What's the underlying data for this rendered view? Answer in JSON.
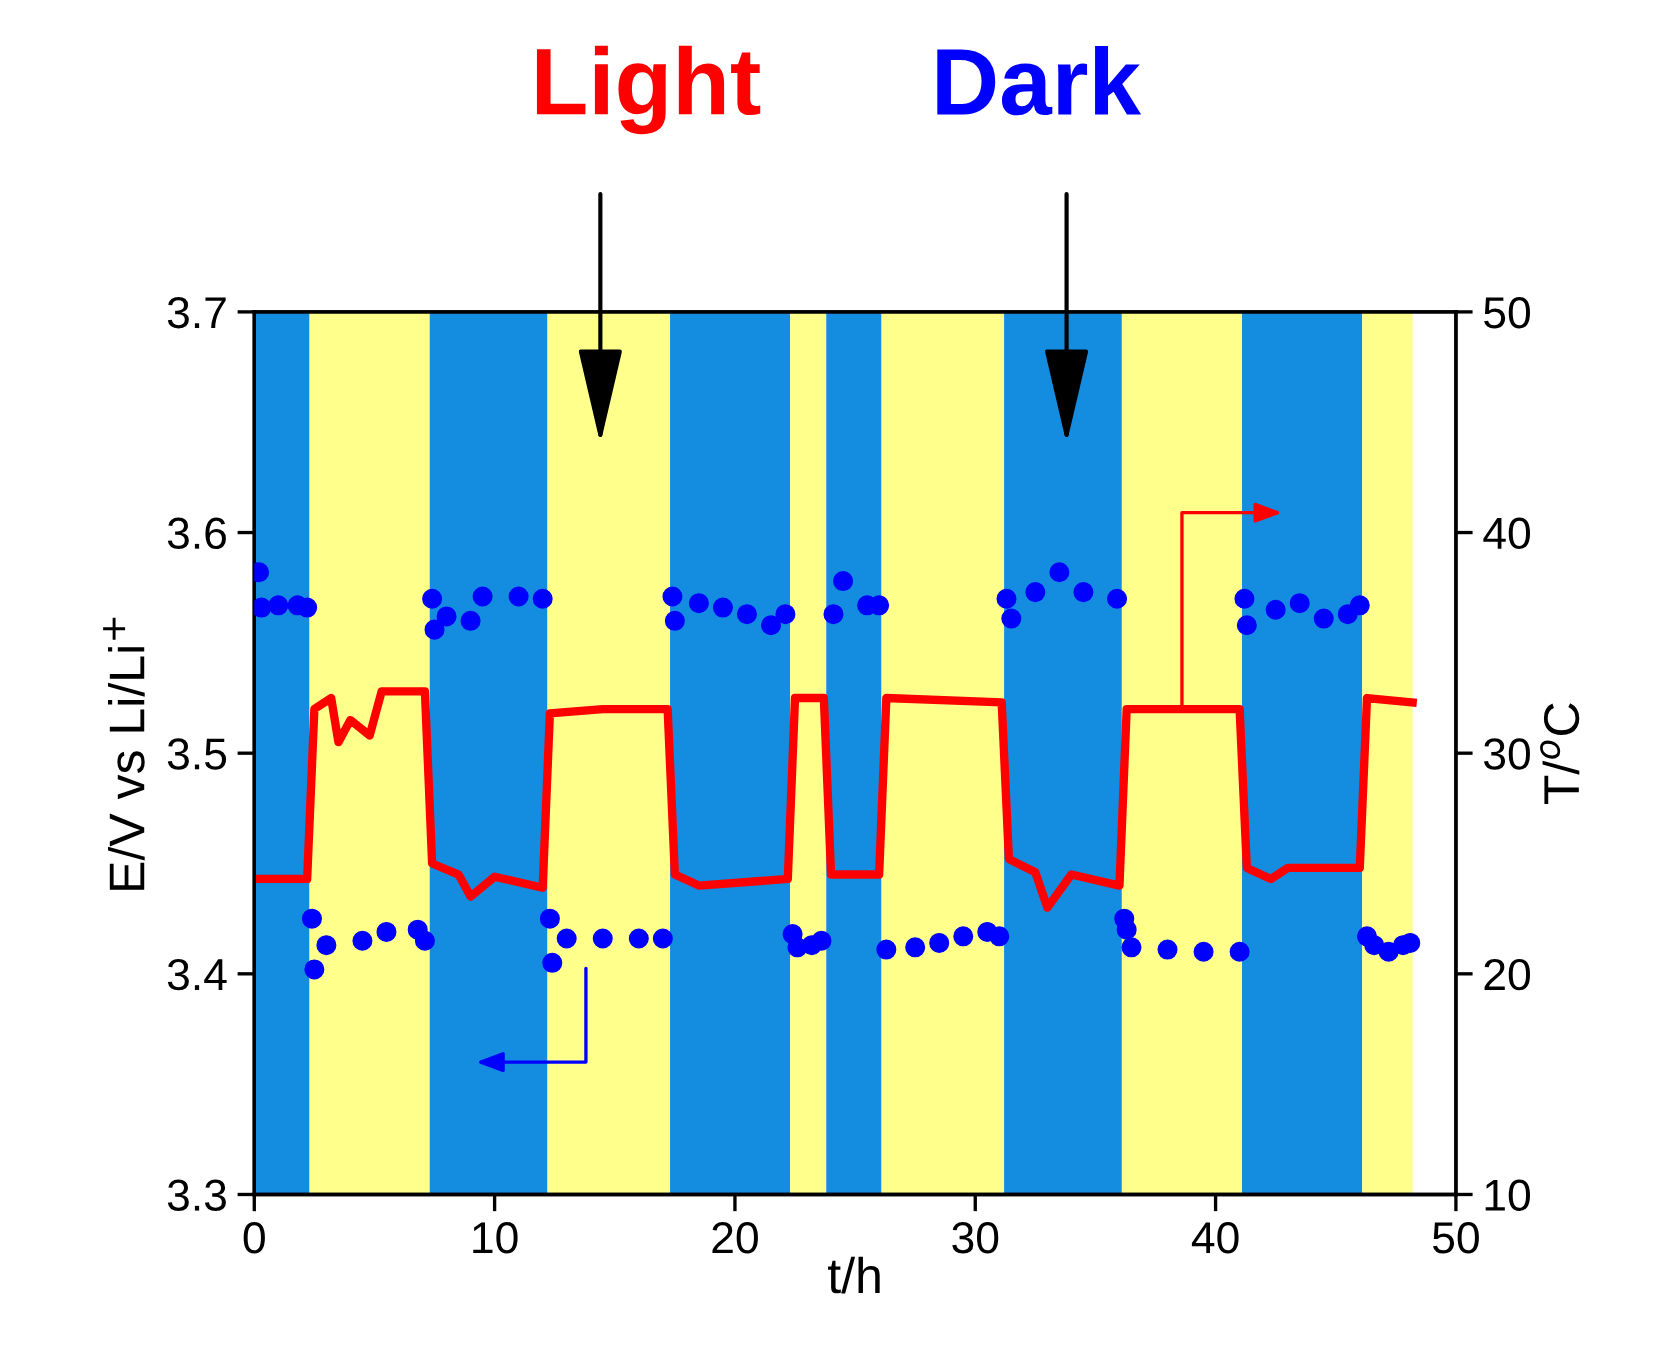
{
  "chart_data": {
    "type": "scatter",
    "xlabel": "t/h",
    "ylabel": "E/V vs Li/Li$^{+}$",
    "y2label": "T/$^{o}$C",
    "annotations": [
      "Light",
      "Dark"
    ],
    "xlim": [
      0,
      50
    ],
    "xticks": [
      0,
      10,
      20,
      30,
      40,
      50
    ],
    "ylim": [
      3.3,
      3.7
    ],
    "yticks": [
      3.3,
      3.4,
      3.5,
      3.6,
      3.7
    ],
    "y2lim": [
      10,
      50
    ],
    "y2ticks": [
      10,
      20,
      30,
      40,
      50
    ],
    "grid": false,
    "legend": false,
    "bands": [
      {
        "axis": "x",
        "from": 0,
        "to": 2.3,
        "color": "#148ce0"
      },
      {
        "axis": "x",
        "from": 2.3,
        "to": 7.3,
        "color": "#ffff8c"
      },
      {
        "axis": "x",
        "from": 7.3,
        "to": 12.2,
        "color": "#148ce0"
      },
      {
        "axis": "x",
        "from": 12.2,
        "to": 17.3,
        "color": "#ffff8c"
      },
      {
        "axis": "x",
        "from": 17.3,
        "to": 22.3,
        "color": "#148ce0"
      },
      {
        "axis": "x",
        "from": 22.3,
        "to": 23.8,
        "color": "#ffff8c"
      },
      {
        "axis": "x",
        "from": 23.8,
        "to": 26.1,
        "color": "#148ce0"
      },
      {
        "axis": "x",
        "from": 26.1,
        "to": 31.2,
        "color": "#ffff8c"
      },
      {
        "axis": "x",
        "from": 31.2,
        "to": 36.1,
        "color": "#148ce0"
      },
      {
        "axis": "x",
        "from": 36.1,
        "to": 41.1,
        "color": "#ffff8c"
      },
      {
        "axis": "x",
        "from": 41.1,
        "to": 46.1,
        "color": "#148ce0"
      },
      {
        "axis": "x",
        "from": 46.1,
        "to": 48.2,
        "color": "#ffff8c"
      }
    ],
    "series": [
      {
        "color": "#0000ff",
        "marker": "circle",
        "x": [
          0.2,
          0.3,
          1.0,
          1.8,
          2.2,
          2.4,
          2.5,
          3.0,
          4.5,
          5.5,
          6.8,
          7.1,
          7.4,
          7.5,
          8.0,
          9.0,
          9.5,
          11.0,
          12.0,
          12.3,
          12.4,
          13.0,
          14.5,
          16.0,
          17.0,
          17.4,
          17.5,
          18.5,
          19.5,
          20.5,
          21.5,
          22.1,
          22.4,
          22.6,
          23.2,
          23.6,
          24.1,
          24.5,
          25.5,
          26.0,
          26.3,
          27.5,
          28.5,
          29.5,
          30.5,
          31.0,
          31.3,
          31.5,
          32.5,
          33.5,
          34.5,
          35.9,
          36.2,
          36.3,
          36.5,
          38.0,
          39.5,
          41.0,
          41.2,
          41.3,
          42.5,
          43.5,
          44.5,
          45.5,
          46.0,
          46.3,
          46.6,
          47.2,
          47.8,
          48.1
        ],
        "values": [
          3.582,
          3.566,
          3.567,
          3.567,
          3.566,
          3.425,
          3.402,
          3.413,
          3.415,
          3.419,
          3.42,
          3.415,
          3.57,
          3.556,
          3.562,
          3.56,
          3.571,
          3.571,
          3.57,
          3.425,
          3.405,
          3.416,
          3.416,
          3.416,
          3.416,
          3.571,
          3.56,
          3.568,
          3.566,
          3.563,
          3.558,
          3.563,
          3.418,
          3.412,
          3.413,
          3.415,
          3.563,
          3.578,
          3.567,
          3.567,
          3.411,
          3.412,
          3.414,
          3.417,
          3.419,
          3.417,
          3.57,
          3.561,
          3.573,
          3.582,
          3.573,
          3.57,
          3.425,
          3.42,
          3.412,
          3.411,
          3.41,
          3.41,
          3.57,
          3.558,
          3.565,
          3.568,
          3.561,
          3.563,
          3.567,
          3.417,
          3.413,
          3.41,
          3.413,
          3.414
        ]
      },
      {
        "type": "line",
        "axis": "y2",
        "color": "#ff0000",
        "line_style": "solid",
        "marker": "none",
        "x": [
          0,
          2.2,
          2.5,
          3.2,
          3.5,
          4.0,
          4.8,
          5.3,
          7.1,
          7.4,
          8.5,
          9.0,
          10,
          12.0,
          12.3,
          14.5,
          17.2,
          17.5,
          18.5,
          22.2,
          22.5,
          23.7,
          24.0,
          26.0,
          26.3,
          31.1,
          31.4,
          32.5,
          33.0,
          34.0,
          36.0,
          36.3,
          41.0,
          41.3,
          42.3,
          43,
          46.0,
          46.3,
          48.2
        ],
        "values": [
          24.3,
          24.3,
          32.0,
          32.5,
          30.5,
          31.5,
          30.8,
          32.8,
          32.8,
          25.0,
          24.5,
          23.5,
          24.4,
          23.9,
          31.8,
          32.0,
          32.0,
          24.5,
          24.0,
          24.3,
          32.5,
          32.5,
          24.5,
          24.5,
          32.5,
          32.3,
          25.2,
          24.6,
          23.0,
          24.5,
          24.0,
          32.0,
          32.0,
          24.8,
          24.3,
          24.8,
          24.8,
          32.5,
          32.3
        ]
      }
    ]
  }
}
